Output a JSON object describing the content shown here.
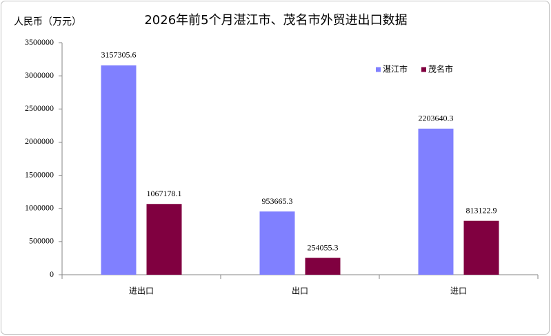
{
  "chart_data": {
    "type": "bar",
    "title": "2026年前5个月湛江市、茂名市外贸进出口数据",
    "y_label": "人民币（万元）",
    "categories": [
      "进出口",
      "出口",
      "进口"
    ],
    "series": [
      {
        "name": "湛江市",
        "color": "#8080ff",
        "values": [
          3157305.6,
          953665.3,
          2203640.3
        ]
      },
      {
        "name": "茂名市",
        "color": "#800040",
        "values": [
          1067178.1,
          254055.3,
          813122.9
        ]
      }
    ],
    "ylim": [
      0,
      3500000
    ],
    "yticks": [
      0,
      500000,
      1000000,
      1500000,
      2000000,
      2500000,
      3000000,
      3500000
    ],
    "grid": false,
    "legend": "upper right"
  }
}
